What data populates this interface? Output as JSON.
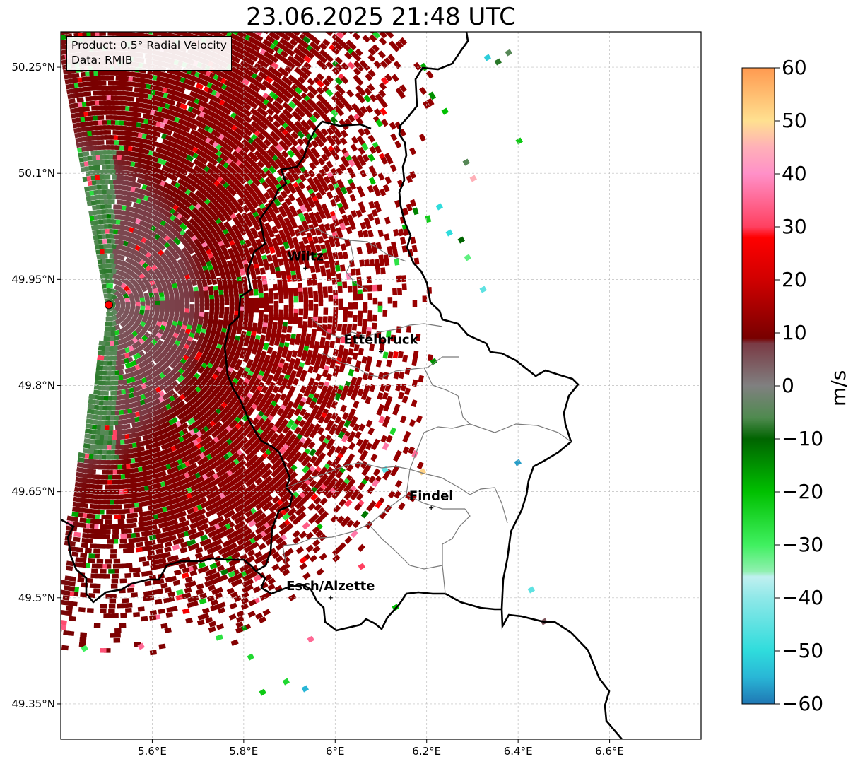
{
  "title": "23.06.2025 21:48 UTC",
  "info": {
    "product": "Product: 0.5° Radial Velocity",
    "data_source": "Data: RMIB"
  },
  "map": {
    "lon_range": [
      5.4,
      6.8
    ],
    "lat_range": [
      49.3,
      50.3
    ],
    "lon_ticks": [
      "5.6°E",
      "5.8°E",
      "6°E",
      "6.2°E",
      "6.4°E",
      "6.6°E"
    ],
    "lat_ticks": [
      "50.25°N",
      "50.1°N",
      "49.95°N",
      "49.8°N",
      "49.65°N",
      "49.5°N",
      "49.35°N"
    ],
    "grid": "dashed, light grey",
    "radar_site": {
      "lon": 5.505,
      "lat": 49.914,
      "color": "#ff0000"
    },
    "cities": [
      {
        "name": "Wiltz",
        "lon": 5.935,
        "lat": 49.966
      },
      {
        "name": "Ettelbruck",
        "lon": 6.1,
        "lat": 49.848
      },
      {
        "name": "Findel",
        "lon": 6.21,
        "lat": 49.627
      },
      {
        "name": "Esch/Alzette",
        "lon": 5.99,
        "lat": 49.5
      }
    ]
  },
  "colorbar": {
    "unit": "m/s",
    "min": -60,
    "max": 60,
    "tick_labels": [
      "60",
      "50",
      "40",
      "30",
      "20",
      "10",
      "0",
      "−10",
      "−20",
      "−30",
      "−40",
      "−50",
      "−60"
    ],
    "color_stops": [
      {
        "value": -60,
        "color": "#1f77b4"
      },
      {
        "value": -55,
        "color": "#29b6d6"
      },
      {
        "value": -50,
        "color": "#2fdcdc"
      },
      {
        "value": -40,
        "color": "#8fe8e8"
      },
      {
        "value": -36,
        "color": "#c0f0f0"
      },
      {
        "value": -35,
        "color": "#90f0b0"
      },
      {
        "value": -30,
        "color": "#40f060"
      },
      {
        "value": -20,
        "color": "#00c000"
      },
      {
        "value": -10,
        "color": "#006400"
      },
      {
        "value": -6,
        "color": "#4f8a4f"
      },
      {
        "value": 0,
        "color": "#808080"
      },
      {
        "value": 8,
        "color": "#7a3a44"
      },
      {
        "value": 9,
        "color": "#780000"
      },
      {
        "value": 20,
        "color": "#d00000"
      },
      {
        "value": 28,
        "color": "#ff0000"
      },
      {
        "value": 30,
        "color": "#ff4060"
      },
      {
        "value": 40,
        "color": "#ff90c8"
      },
      {
        "value": 45,
        "color": "#ffb0b8"
      },
      {
        "value": 50,
        "color": "#ffe090"
      },
      {
        "value": 60,
        "color": "#ff9a50"
      }
    ]
  }
}
